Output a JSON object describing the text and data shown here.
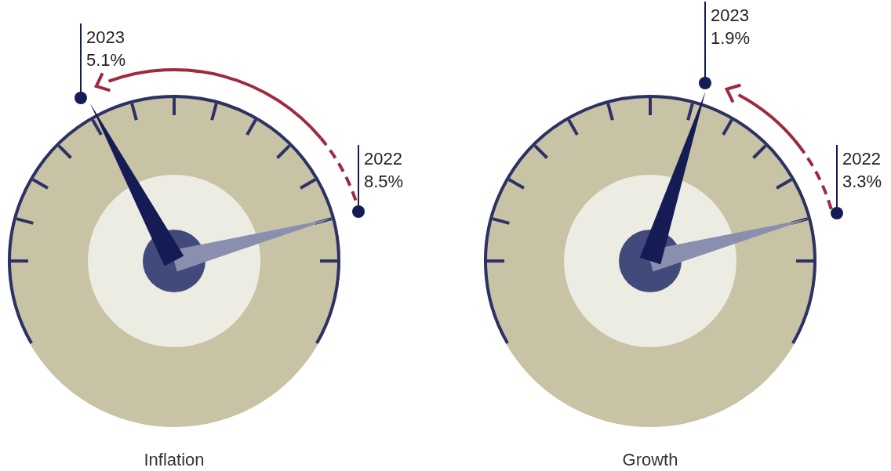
{
  "chart_data": [
    {
      "type": "other",
      "title": "Inflation",
      "categories": [
        "2022",
        "2023"
      ],
      "values": [
        8.5,
        5.1
      ],
      "value_labels": [
        "8.5%",
        "5.1%"
      ],
      "colors": [
        "#8a8fb0",
        "#151b55"
      ]
    },
    {
      "type": "other",
      "title": "Growth",
      "categories": [
        "2022",
        "2023"
      ],
      "values": [
        3.3,
        1.9
      ],
      "value_labels": [
        "3.3%",
        "1.9%"
      ],
      "colors": [
        "#8a8fb0",
        "#151b55"
      ]
    }
  ]
}
